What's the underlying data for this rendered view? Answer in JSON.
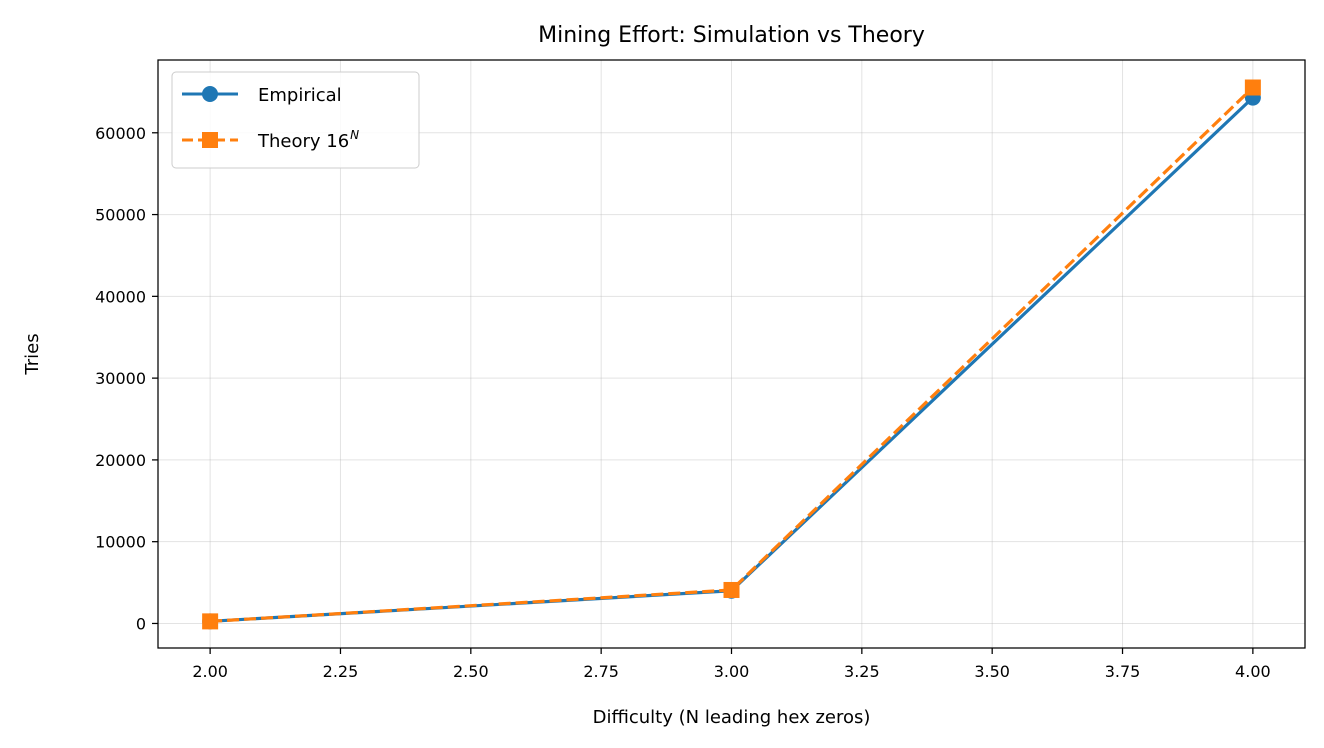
{
  "chart_data": {
    "type": "line",
    "title": "Mining Effort: Simulation vs Theory",
    "xlabel": "Difficulty (N leading hex zeros)",
    "ylabel": "Tries",
    "x": [
      2,
      3,
      4
    ],
    "xlim": [
      1.9,
      4.1
    ],
    "ylim": [
      -3000,
      68900
    ],
    "xticks": [
      2.0,
      2.25,
      2.5,
      2.75,
      3.0,
      3.25,
      3.5,
      3.75,
      4.0
    ],
    "xtick_labels": [
      "2.00",
      "2.25",
      "2.50",
      "2.75",
      "3.00",
      "3.25",
      "3.50",
      "3.75",
      "4.00"
    ],
    "yticks": [
      0,
      10000,
      20000,
      30000,
      40000,
      50000,
      60000
    ],
    "ytick_labels": [
      "0",
      "10000",
      "20000",
      "30000",
      "40000",
      "50000",
      "60000"
    ],
    "grid": true,
    "legend_position": "upper-left",
    "series": [
      {
        "name": "Empirical",
        "values": [
          260,
          4000,
          64300
        ],
        "color": "#1f77b4",
        "marker": "circle",
        "linestyle": "solid"
      },
      {
        "name": "Theory 16",
        "name_superscript": "N",
        "values": [
          256,
          4096,
          65536
        ],
        "color": "#ff7f0e",
        "marker": "square",
        "linestyle": "dashed"
      }
    ]
  }
}
